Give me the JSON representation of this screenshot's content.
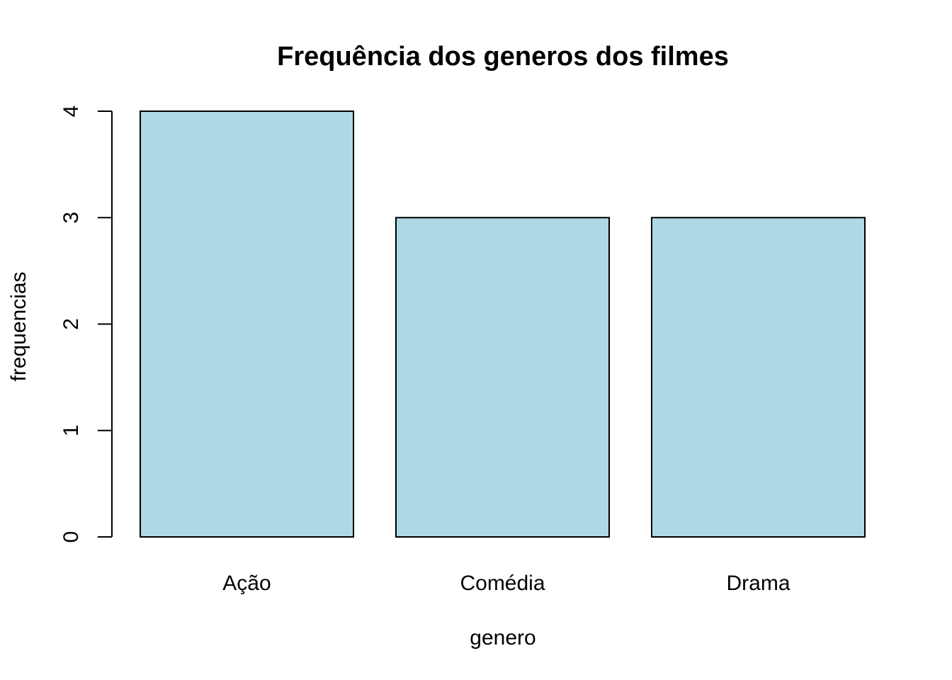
{
  "chart_data": {
    "type": "bar",
    "title": "Frequência dos generos dos filmes",
    "xlabel": "genero",
    "ylabel": "frequencias",
    "categories": [
      "Ação",
      "Comédia",
      "Drama"
    ],
    "values": [
      4,
      3,
      3
    ],
    "ylim": [
      0,
      4
    ],
    "yticks": [
      "0",
      "1",
      "2",
      "3",
      "4"
    ],
    "bar_color": "#add8e6",
    "border_color": "#000000",
    "grid": false,
    "legend": false
  }
}
